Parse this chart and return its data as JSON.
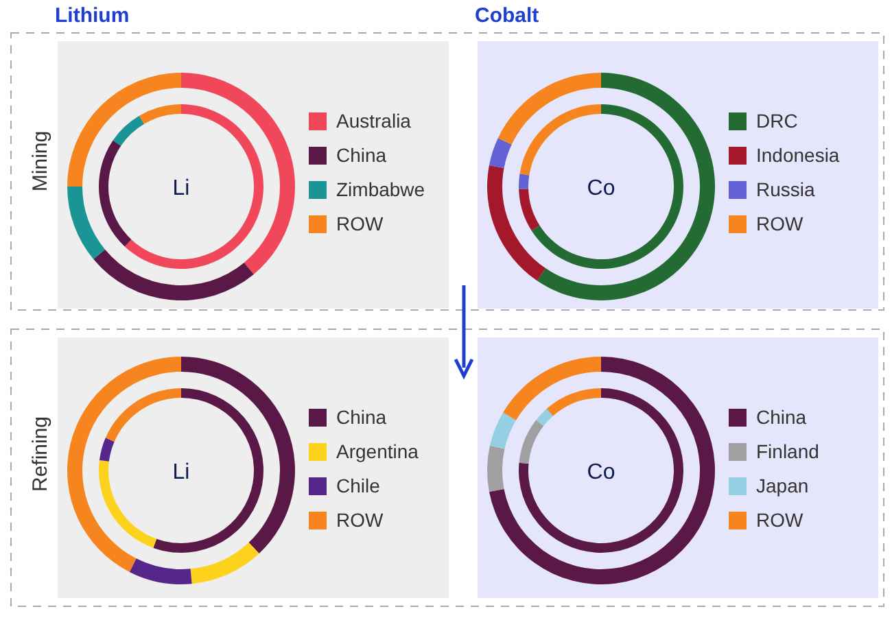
{
  "chart_data": [
    {
      "type": "donut",
      "title": "Lithium",
      "ylabel": "Mining",
      "annotations": [
        "Li"
      ],
      "legend": "right",
      "categories": [
        "Australia",
        "China",
        "Zimbabwe",
        "ROW"
      ],
      "colors": [
        "#f0475a",
        "#5a1846",
        "#1a9494",
        "#f7851f"
      ],
      "series": [
        {
          "values": [
            39,
            25,
            11,
            25
          ]
        },
        {
          "values": [
            62,
            22.5,
            7,
            8.5
          ]
        }
      ]
    },
    {
      "type": "donut",
      "title": "Cobalt",
      "annotations": [
        "Co"
      ],
      "legend": "right",
      "categories": [
        "DRC",
        "Indonesia",
        "Russia",
        "ROW"
      ],
      "colors": [
        "#236b32",
        "#a3182a",
        "#6262d4",
        "#f7851f"
      ],
      "series": [
        {
          "values": [
            59.5,
            18.5,
            4,
            18
          ]
        },
        {
          "values": [
            66,
            8.5,
            3,
            22.5
          ]
        }
      ]
    },
    {
      "type": "donut",
      "ylabel": "Refining",
      "annotations": [
        "Li"
      ],
      "legend": "right",
      "categories": [
        "China",
        "Argentina",
        "Chile",
        "ROW"
      ],
      "colors": [
        "#5a1846",
        "#fdd21c",
        "#55278b",
        "#f7851f"
      ],
      "series": [
        {
          "values": [
            38,
            10.5,
            9,
            42.5
          ]
        },
        {
          "values": [
            55.5,
            21.5,
            4.5,
            18.5
          ]
        }
      ]
    },
    {
      "type": "donut",
      "annotations": [
        "Co"
      ],
      "legend": "right",
      "categories": [
        "China",
        "Finland",
        "Japan",
        "ROW"
      ],
      "colors": [
        "#5a1846",
        "#a0a0a0",
        "#94cfe3",
        "#f7851f"
      ],
      "series": [
        {
          "values": [
            72,
            6.5,
            5,
            16.5
          ]
        },
        {
          "values": [
            76.5,
            9,
            3,
            11.5
          ]
        }
      ]
    }
  ]
}
